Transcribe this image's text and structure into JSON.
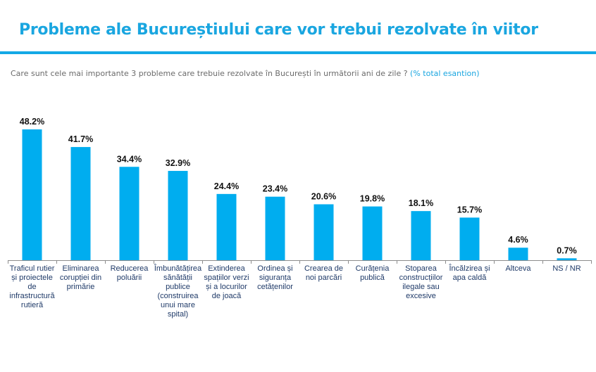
{
  "header": {
    "title": "Probleme ale Bucureștiului care vor trebui rezolvate în viitor",
    "question": "Care sunt cele mai importante 3 probleme care trebuie rezolvate în București în următorii ani de zile ?",
    "question_note": "(% total esantion)"
  },
  "colors": {
    "bar": "#00adef",
    "title": "#1aa6e0",
    "axis": "#8c8c8c"
  },
  "chart_data": {
    "type": "bar",
    "title": "Probleme ale Bucureștiului care vor trebui rezolvate în viitor",
    "xlabel": "",
    "ylabel": "",
    "ylim": [
      0,
      50
    ],
    "grid": false,
    "categories": [
      "Traficul rutier și proiectele de infrastructură rutieră",
      "Eliminarea corupției din primărie",
      "Reducerea poluării",
      "Îmbunătățirea sănătății publice (construirea unui mare spital)",
      "Extinderea spațiilor verzi și a locurilor de joacă",
      "Ordinea și siguranța cetățenilor",
      "Crearea de noi parcări",
      "Curățenia publică",
      "Stoparea construcțiilor ilegale sau excesive",
      "Încălzirea și apa caldă",
      "Altceva",
      "NS / NR"
    ],
    "values": [
      48.2,
      41.7,
      34.4,
      32.9,
      24.4,
      23.4,
      20.6,
      19.8,
      18.1,
      15.7,
      4.6,
      0.7
    ],
    "labels": [
      "48.2%",
      "41.7%",
      "34.4%",
      "32.9%",
      "24.4%",
      "23.4%",
      "20.6%",
      "19.8%",
      "18.1%",
      "15.7%",
      "4.6%",
      "0.7%"
    ]
  }
}
